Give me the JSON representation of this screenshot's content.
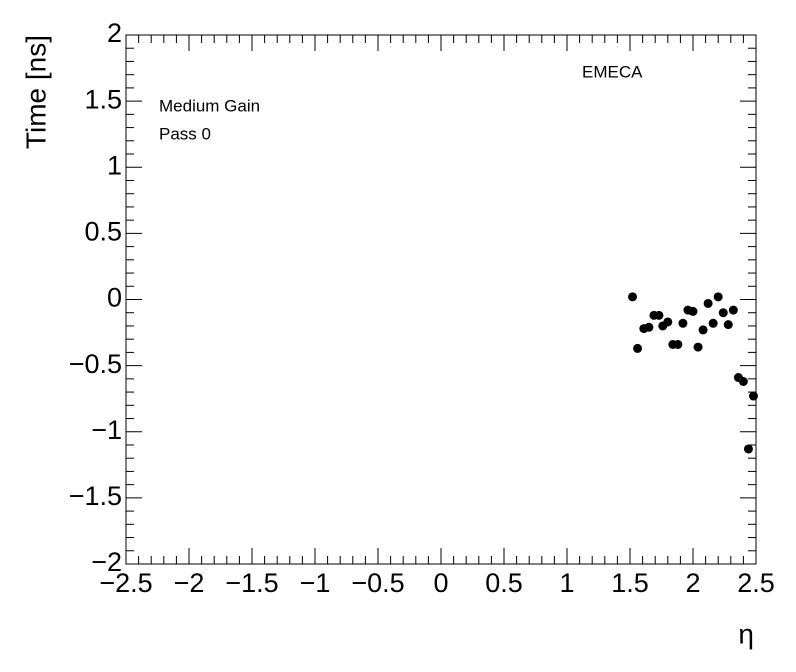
{
  "chart_data": {
    "type": "scatter",
    "xlabel": "η",
    "ylabel": "Time [ns]",
    "annotations": [
      "EMECA",
      "Medium Gain",
      "Pass 0"
    ],
    "color": "#000000",
    "x": [
      1.52,
      1.56,
      1.61,
      1.65,
      1.69,
      1.73,
      1.76,
      1.8,
      1.84,
      1.88,
      1.92,
      1.96,
      2.0,
      2.04,
      2.08,
      2.12,
      2.16,
      2.2,
      2.24,
      2.28,
      2.32,
      2.36,
      2.4,
      2.44,
      2.48
    ],
    "values": [
      0.02,
      -0.37,
      -0.22,
      -0.21,
      -0.12,
      -0.12,
      -0.2,
      -0.17,
      -0.34,
      -0.34,
      -0.18,
      -0.08,
      -0.09,
      -0.36,
      -0.23,
      -0.03,
      -0.18,
      0.02,
      -0.1,
      -0.19,
      -0.08,
      -0.59,
      -0.62,
      -1.13,
      -0.73
    ],
    "xlim": [
      -2.5,
      2.5
    ],
    "ylim": [
      -2,
      2
    ],
    "xticks": [
      {
        "value": -2.5,
        "label": "−2.5"
      },
      {
        "value": -2,
        "label": "−2"
      },
      {
        "value": -1.5,
        "label": "−1.5"
      },
      {
        "value": -1,
        "label": "−1"
      },
      {
        "value": -0.5,
        "label": "−0.5"
      },
      0,
      0.5,
      1,
      1.5,
      2,
      2.5
    ],
    "yticks": [
      {
        "value": -2,
        "label": "−2"
      },
      {
        "value": -1.5,
        "label": "−1.5"
      },
      {
        "value": -1,
        "label": "−1"
      },
      {
        "value": -0.5,
        "label": "−0.5"
      },
      0,
      0.5,
      1,
      1.5,
      2
    ]
  }
}
